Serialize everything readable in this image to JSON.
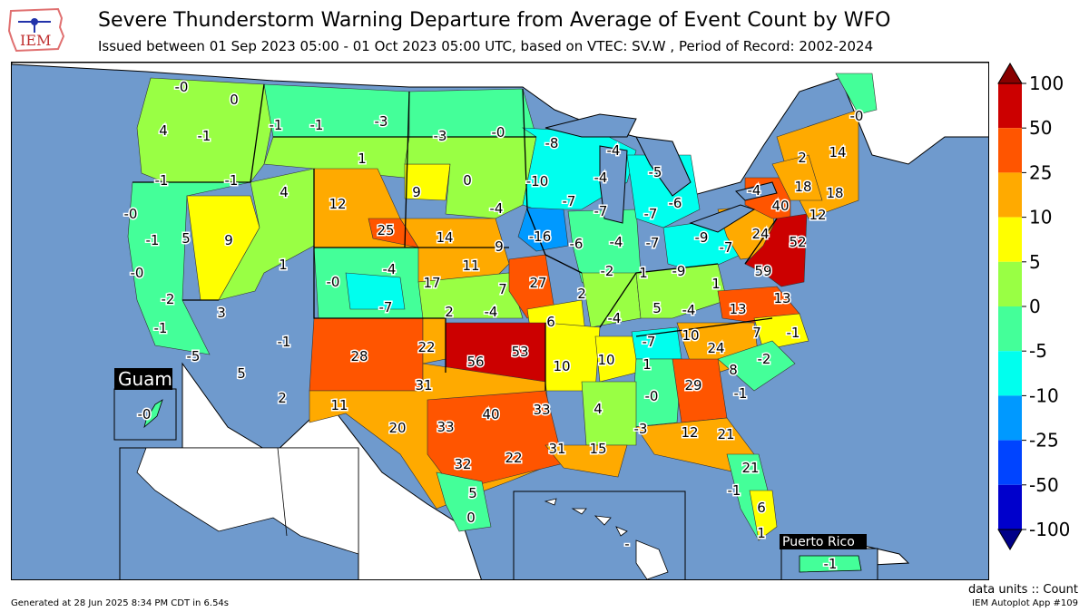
{
  "header": {
    "title": "Severe Thunderstorm Warning Departure from Average of Event Count by WFO",
    "subtitle": "Issued between 01 Sep 2023 05:00 - 01 Oct 2023 05:00 UTC, based on VTEC: SV.W  , Period of Record: 2002-2024"
  },
  "logo": {
    "text": "IEM",
    "icon": "iem-state-outline-icon"
  },
  "insets": {
    "guam": "Guam",
    "puerto_rico": "Puerto Rico"
  },
  "colorbar": {
    "ticks": [
      "100",
      "50",
      "25",
      "10",
      "5",
      "0",
      "-5",
      "-10",
      "-25",
      "-50",
      "-100"
    ],
    "colors": [
      "#cc0000",
      "#ff5500",
      "#ffaa00",
      "#ffff00",
      "#99ff44",
      "#44ff99",
      "#00ffee",
      "#0099ff",
      "#0044ff",
      "#0000cc"
    ],
    "top_arrow_color": "#880000",
    "bottom_arrow_color": "#000088"
  },
  "colors": {
    "ocean": "#6f9acd",
    "foreign_land": "#ffffff",
    "border": "#000000"
  },
  "footer": {
    "units": "data units :: Count",
    "generated": "Generated at 28 Jun 2025 8:34 PM CDT in 6.54s",
    "app": "IEM Autoplot App #109"
  },
  "wfo_values": [
    {
      "id": "pqr",
      "value": "-0"
    },
    {
      "id": "otx",
      "value": "0"
    },
    {
      "id": "sew",
      "value": "4"
    },
    {
      "id": "pdt",
      "value": "-1"
    },
    {
      "id": "mso",
      "value": "-1"
    },
    {
      "id": "tfx",
      "value": "-1"
    },
    {
      "id": "ggw",
      "value": "-3"
    },
    {
      "id": "bis",
      "value": "-3"
    },
    {
      "id": "fgf",
      "value": "-0"
    },
    {
      "id": "mpx-n",
      "value": "-8"
    },
    {
      "id": "mqt",
      "value": "-4"
    },
    {
      "id": "mfr",
      "value": "-1"
    },
    {
      "id": "boi",
      "value": "-1"
    },
    {
      "id": "byz",
      "value": "1"
    },
    {
      "id": "pih",
      "value": "4"
    },
    {
      "id": "riw",
      "value": "12"
    },
    {
      "id": "unr",
      "value": "9"
    },
    {
      "id": "abr",
      "value": "0"
    },
    {
      "id": "dlh",
      "value": "-10"
    },
    {
      "id": "grb",
      "value": "-4"
    },
    {
      "id": "apx",
      "value": "-5"
    },
    {
      "id": "grr",
      "value": "-6"
    },
    {
      "id": "mkx",
      "value": "-7"
    },
    {
      "id": "fsd",
      "value": "-4"
    },
    {
      "id": "arx",
      "value": "-7"
    },
    {
      "id": "dtx",
      "value": "-7"
    },
    {
      "id": "eka",
      "value": "-0"
    },
    {
      "id": "mtr",
      "value": "-1"
    },
    {
      "id": "lkn",
      "value": "5"
    },
    {
      "id": "sto",
      "value": "9"
    },
    {
      "id": "cys",
      "value": "25"
    },
    {
      "id": "lbf",
      "value": "14"
    },
    {
      "id": "oax",
      "value": "9"
    },
    {
      "id": "dmx",
      "value": "-16"
    },
    {
      "id": "dvn",
      "value": "-6"
    },
    {
      "id": "lot",
      "value": "-4"
    },
    {
      "id": "iwx",
      "value": "-7"
    },
    {
      "id": "cle",
      "value": "-9"
    },
    {
      "id": "pbz",
      "value": "-7"
    },
    {
      "id": "ctp",
      "value": "24"
    },
    {
      "id": "phi",
      "value": "52"
    },
    {
      "id": "okx",
      "value": "12"
    },
    {
      "id": "bgm",
      "value": "40"
    },
    {
      "id": "buf",
      "value": "-4"
    },
    {
      "id": "alb",
      "value": "18"
    },
    {
      "id": "box",
      "value": "18"
    },
    {
      "id": "btv",
      "value": "2"
    },
    {
      "id": "gyx",
      "value": "14"
    },
    {
      "id": "car",
      "value": "-0"
    },
    {
      "id": "slc",
      "value": "1"
    },
    {
      "id": "gjt",
      "value": "-0"
    },
    {
      "id": "bou",
      "value": "-4"
    },
    {
      "id": "gld",
      "value": "11"
    },
    {
      "id": "gid",
      "value": "7"
    },
    {
      "id": "eax",
      "value": "27"
    },
    {
      "id": "ilx",
      "value": "-2"
    },
    {
      "id": "ind",
      "value": "1"
    },
    {
      "id": "iln",
      "value": "-9"
    },
    {
      "id": "rlx",
      "value": "1"
    },
    {
      "id": "lwx",
      "value": "59"
    },
    {
      "id": "han",
      "value": "-0"
    },
    {
      "id": "lox",
      "value": "-2"
    },
    {
      "id": "vef",
      "value": "3"
    },
    {
      "id": "pue",
      "value": "-7"
    },
    {
      "id": "ddc",
      "value": "17"
    },
    {
      "id": "ict",
      "value": "2"
    },
    {
      "id": "top",
      "value": "-4"
    },
    {
      "id": "sgf",
      "value": "6"
    },
    {
      "id": "lsx",
      "value": "2"
    },
    {
      "id": "pah",
      "value": "-4"
    },
    {
      "id": "lmk",
      "value": "5"
    },
    {
      "id": "jkl",
      "value": "-4"
    },
    {
      "id": "akq",
      "value": "13"
    },
    {
      "id": "rnk",
      "value": "13"
    },
    {
      "id": "sgx",
      "value": "-1"
    },
    {
      "id": "psr",
      "value": "-5"
    },
    {
      "id": "fgz",
      "value": "-1"
    },
    {
      "id": "abq",
      "value": "28"
    },
    {
      "id": "ama",
      "value": "22"
    },
    {
      "id": "oun",
      "value": "56"
    },
    {
      "id": "tsa",
      "value": "53"
    },
    {
      "id": "lzk",
      "value": "10"
    },
    {
      "id": "meg",
      "value": "10"
    },
    {
      "id": "ohx",
      "value": "-7"
    },
    {
      "id": "mrx",
      "value": "10"
    },
    {
      "id": "rah",
      "value": "7"
    },
    {
      "id": "mhx",
      "value": "-1"
    },
    {
      "id": "gsp",
      "value": "24"
    },
    {
      "id": "cae",
      "value": "8"
    },
    {
      "id": "ilm",
      "value": "-2"
    },
    {
      "id": "twc",
      "value": "5"
    },
    {
      "id": "epz",
      "value": "2"
    },
    {
      "id": "lub",
      "value": "31"
    },
    {
      "id": "hun",
      "value": "1"
    },
    {
      "id": "ffc",
      "value": "29"
    },
    {
      "id": "bmx",
      "value": "-0"
    },
    {
      "id": "shv",
      "value": "33"
    },
    {
      "id": "jan",
      "value": "4"
    },
    {
      "id": "chs",
      "value": "-1"
    },
    {
      "id": "maf",
      "value": "11"
    },
    {
      "id": "sjt",
      "value": "20"
    },
    {
      "id": "fwd",
      "value": "33"
    },
    {
      "id": "tsa-s",
      "value": "40"
    },
    {
      "id": "lch",
      "value": "31"
    },
    {
      "id": "lix",
      "value": "15"
    },
    {
      "id": "mob",
      "value": "-3"
    },
    {
      "id": "tae",
      "value": "12"
    },
    {
      "id": "jax",
      "value": "21"
    },
    {
      "id": "ewx",
      "value": "32"
    },
    {
      "id": "hgx",
      "value": "22"
    },
    {
      "id": "mlb",
      "value": "21"
    },
    {
      "id": "crp",
      "value": "5"
    },
    {
      "id": "tbw",
      "value": "-1"
    },
    {
      "id": "mfl",
      "value": "6"
    },
    {
      "id": "bro",
      "value": "0"
    },
    {
      "id": "key",
      "value": "1"
    },
    {
      "id": "hfo",
      "value": "-"
    },
    {
      "id": "gum",
      "value": "-0"
    },
    {
      "id": "sju",
      "value": "-1"
    }
  ]
}
